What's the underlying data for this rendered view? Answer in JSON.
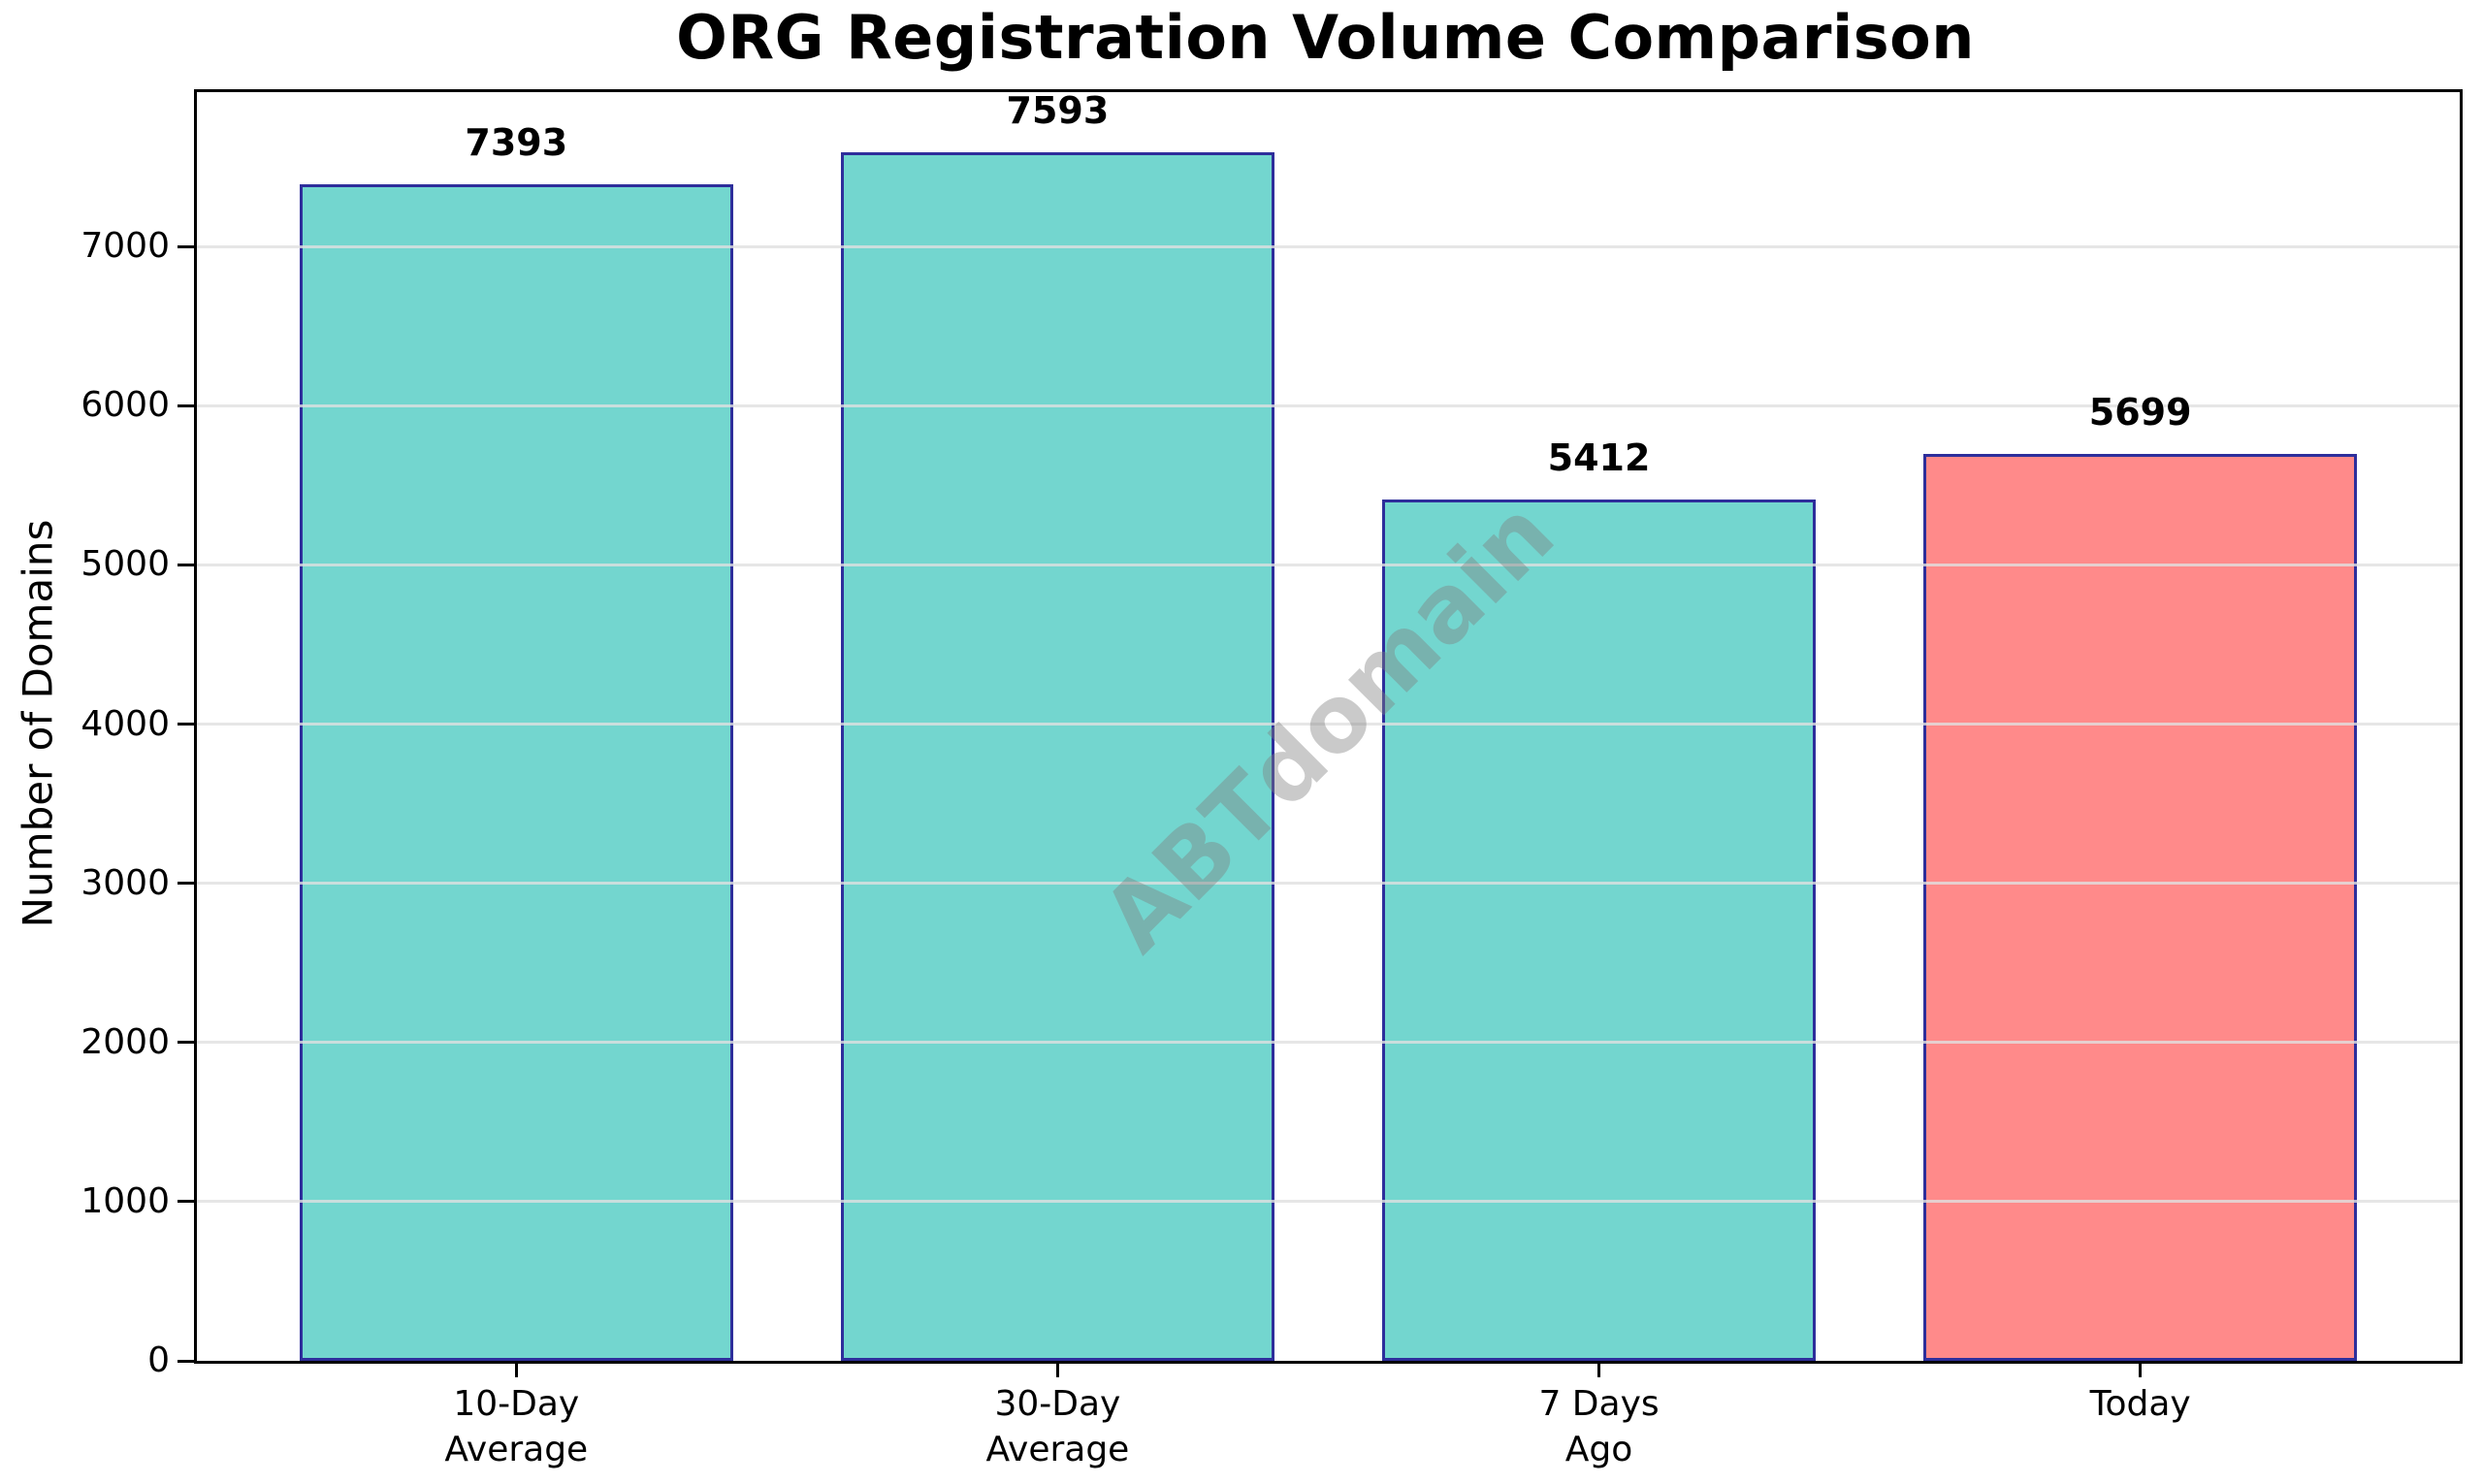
{
  "chart_data": {
    "type": "bar",
    "title": "ORG Registration Volume Comparison",
    "xlabel": "",
    "ylabel": "Number of Domains",
    "categories": [
      [
        "10-Day",
        "Average"
      ],
      [
        "30-Day",
        "Average"
      ],
      [
        "7 Days",
        "Ago"
      ],
      [
        "Today"
      ]
    ],
    "values": [
      7393,
      7593,
      5412,
      5699
    ],
    "value_labels": [
      "7393",
      "7593",
      "5412",
      "5699"
    ],
    "bar_colors": [
      "#73D6CF",
      "#73D6CF",
      "#73D6CF",
      "#FF8A8A"
    ],
    "bar_edge_color": "#2E2E9B",
    "yticks": [
      0,
      1000,
      2000,
      3000,
      4000,
      5000,
      6000,
      7000
    ],
    "ytick_labels": [
      "0",
      "1000",
      "2000",
      "3000",
      "4000",
      "5000",
      "6000",
      "7000"
    ],
    "ylim": [
      0,
      7970
    ],
    "grid": true,
    "gridline_color": "rgba(224,224,224,0.8)",
    "legend": "none",
    "watermark": {
      "text": "ABTdomain",
      "color": "rgba(128,128,128,0.42)",
      "rotation_deg": -45
    }
  }
}
